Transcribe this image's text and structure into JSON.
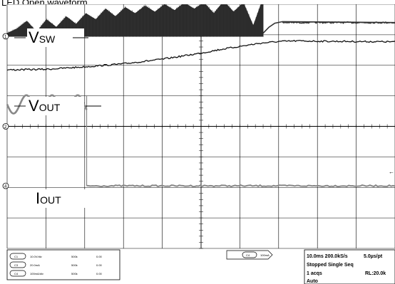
{
  "page": {
    "title": "LED Open waveform"
  },
  "chart_data": {
    "type": "line",
    "title": "LED Open waveform",
    "grid": true,
    "divisions": {
      "x": 10,
      "y": 8
    },
    "time_per_div": "10.0ms",
    "series": [
      {
        "name": "VSW",
        "label_main": "V",
        "label_sub": "SW",
        "channel_marker": "1",
        "color": "#333333",
        "segments": [
          {
            "kind": "switching-envelope",
            "x_range_div": [
              0.0,
              6.6
            ],
            "envelope_low_div": 2.95,
            "envelope_high_div": [
              3.05,
              3.2,
              3.45,
              3.1,
              3.5,
              3.25,
              3.6,
              3.35,
              3.7,
              3.5,
              3.85,
              3.6,
              3.9,
              3.7,
              3.95,
              3.75,
              4.0,
              3.8,
              4.05,
              3.85,
              4.05,
              3.7,
              4.1,
              3.75,
              4.05,
              3.3,
              4.2
            ]
          },
          {
            "kind": "steady",
            "x": [
              6.6,
              6.75,
              6.9,
              7.1,
              10.0
            ],
            "y_div": [
              3.05,
              3.25,
              3.38,
              3.43,
              3.4
            ]
          }
        ]
      },
      {
        "name": "VOUT",
        "label_main": "V",
        "label_sub": "OUT",
        "channel_marker": "",
        "color": "#111111",
        "x_div": [
          0.0,
          1.0,
          2.0,
          3.0,
          4.0,
          5.0,
          5.5,
          6.0,
          6.5,
          7.0,
          7.5,
          8.0,
          9.0,
          10.0
        ],
        "y_div": [
          1.85,
          1.87,
          1.95,
          2.05,
          2.2,
          2.4,
          2.52,
          2.62,
          2.72,
          2.78,
          2.8,
          2.79,
          2.78,
          2.77
        ]
      },
      {
        "name": "IOUT",
        "label_main": "I",
        "label_sub": "OUT",
        "channel_marker": "2",
        "color": "#888888",
        "segments": [
          {
            "kind": "sine",
            "x_range_div": [
              0.0,
              2.05
            ],
            "center_div": 0.72,
            "amplitude_div": 0.3,
            "periods": 3.1
          },
          {
            "kind": "steady",
            "x": [
              2.05,
              10.0
            ],
            "y_div": [
              -1.95,
              -1.95
            ]
          }
        ]
      }
    ],
    "markers": [
      "1",
      "2",
      "4"
    ]
  },
  "status": {
    "ch1": {
      "id": "C1",
      "scale": "10.0V/div",
      "bw": "500k",
      "offset": "0.00"
    },
    "ch2": {
      "id": "C3",
      "scale": "20.0mA",
      "bw": "500k",
      "offset": "0.00"
    },
    "ch3": {
      "id": "C4",
      "scale": "100mA/div",
      "bw": "500k",
      "offset": "0.00"
    },
    "trigger": {
      "id": "C4",
      "value": "100mA"
    },
    "timebase": "10.0ms 200.0kS/s",
    "time_per_pt": "5.0µs/pt",
    "state": "Stopped Single Seq",
    "acqs": "1 acqs",
    "rl": "RL:20.0k",
    "mode": "Auto"
  }
}
